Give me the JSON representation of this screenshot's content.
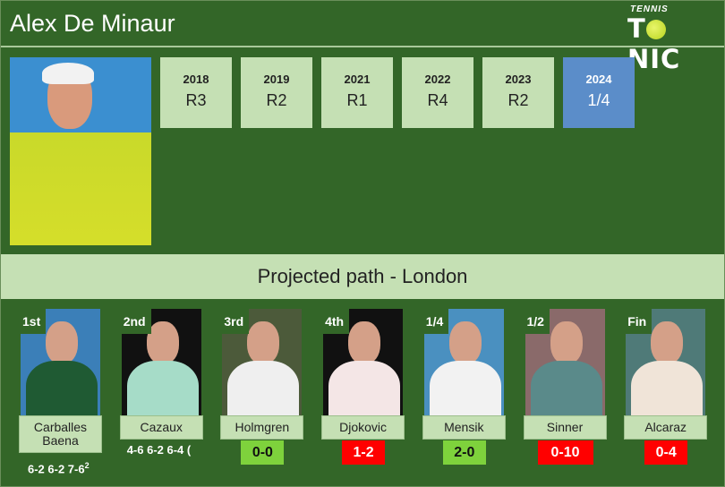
{
  "title": "Alex De Minaur",
  "logo": {
    "top": "TENNIS",
    "bottom": "TONIC"
  },
  "history": [
    {
      "year": "2018",
      "result": "R3"
    },
    {
      "year": "2019",
      "result": "R2"
    },
    {
      "year": "2021",
      "result": "R1"
    },
    {
      "year": "2022",
      "result": "R4"
    },
    {
      "year": "2023",
      "result": "R2"
    },
    {
      "year": "2024",
      "result": "1/4",
      "current": true
    }
  ],
  "path_title": "Projected path - London",
  "path": [
    {
      "round": "1st",
      "name": "Carballes Baena",
      "score": "6-2 6-2 7-6",
      "score_sup": "2",
      "bg": "#3b7fb8",
      "shirt": "#1f5a33"
    },
    {
      "round": "2nd",
      "name": "Cazaux",
      "score": "4-6 6-2 6-4 (",
      "bg": "#111111",
      "shirt": "#a6dcc8"
    },
    {
      "round": "3rd",
      "name": "Holmgren",
      "h2h": "0-0",
      "h2h_color": "#7ed23c",
      "bg": "#4c5a3a",
      "shirt": "#efefef"
    },
    {
      "round": "4th",
      "name": "Djokovic",
      "h2h": "1-2",
      "h2h_color": "#ff0000",
      "bg": "#111111",
      "shirt": "#f4e6e6"
    },
    {
      "round": "1/4",
      "name": "Mensik",
      "h2h": "2-0",
      "h2h_color": "#7ed23c",
      "bg": "#4a90c0",
      "shirt": "#f2f2f2"
    },
    {
      "round": "1/2",
      "name": "Sinner",
      "h2h": "0-10",
      "h2h_color": "#ff0000",
      "bg": "#8a6a6a",
      "shirt": "#5a8a8a"
    },
    {
      "round": "Fin",
      "name": "Alcaraz",
      "h2h": "0-4",
      "h2h_color": "#ff0000",
      "bg": "#4f7a78",
      "shirt": "#f0e4d8"
    }
  ]
}
